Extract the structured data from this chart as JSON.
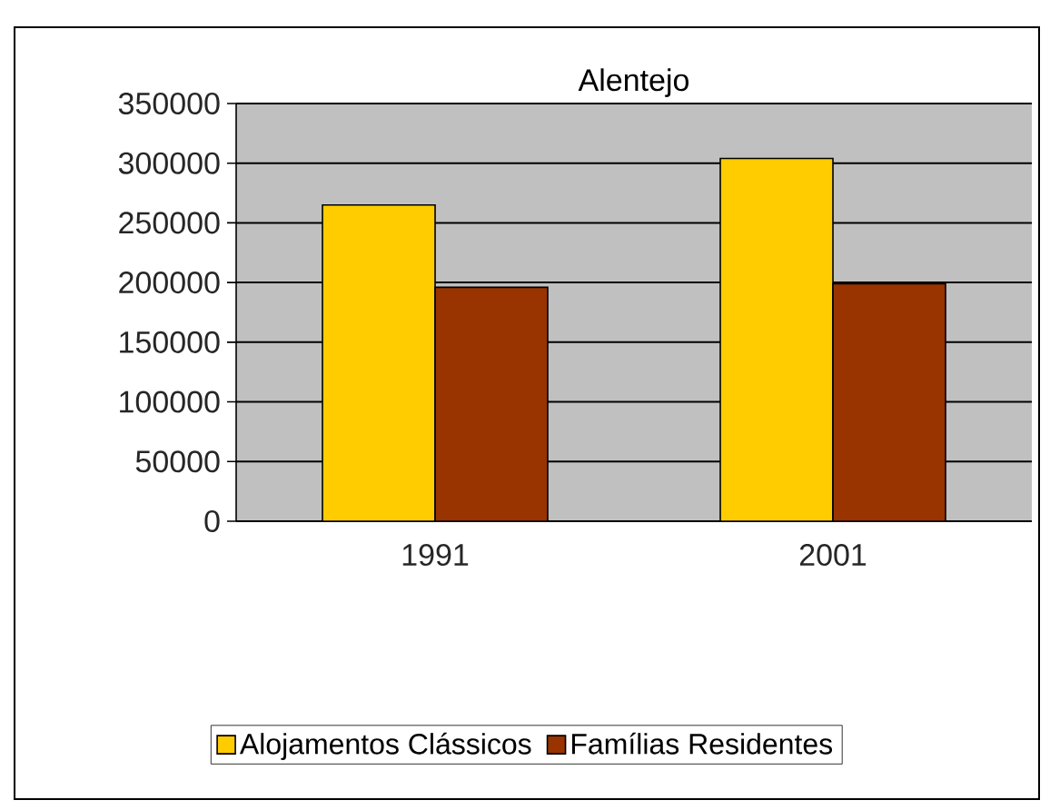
{
  "chart_data": {
    "type": "bar",
    "title": "Alentejo",
    "categories": [
      "1991",
      "2001"
    ],
    "series": [
      {
        "name": "Alojamentos Clássicos",
        "color": "#ffcc00",
        "values": [
          265000,
          304000
        ]
      },
      {
        "name": "Famílias Residentes",
        "color": "#993300",
        "values": [
          196000,
          199000
        ]
      }
    ],
    "ylim": [
      0,
      350000
    ],
    "yticks": [
      0,
      50000,
      100000,
      150000,
      200000,
      250000,
      300000,
      350000
    ],
    "grid": "y",
    "legend": "bottom"
  }
}
